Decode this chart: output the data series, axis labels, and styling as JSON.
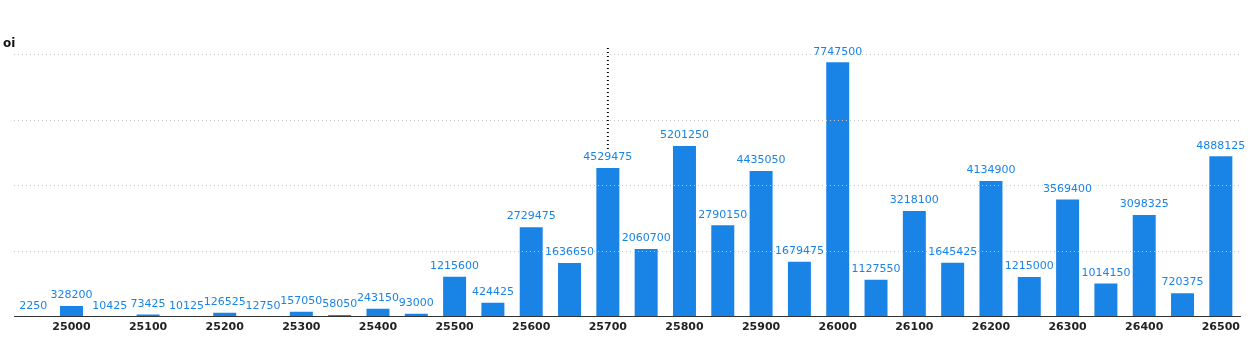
{
  "chart_data": {
    "type": "bar",
    "ylabel": "oi",
    "categories": [
      null,
      "25000",
      null,
      "25100",
      null,
      "25200",
      null,
      "25300",
      null,
      "25400",
      null,
      "25500",
      null,
      "25600",
      null,
      "25700",
      null,
      "25800",
      null,
      "25900",
      null,
      "26000",
      null,
      "26100",
      null,
      "26200",
      null,
      "26300",
      null,
      "26400",
      null,
      "26500"
    ],
    "values": [
      2250,
      328200,
      10425,
      73425,
      10125,
      126525,
      12750,
      157050,
      58050,
      243150,
      93000,
      1215600,
      424425,
      2729475,
      1636650,
      4529475,
      2060700,
      5201250,
      2790150,
      4435050,
      1679475,
      7747500,
      1127550,
      3218100,
      1645425,
      4134900,
      1215000,
      3569400,
      1014150,
      3098325,
      720375,
      4888125
    ],
    "color": "#1a84e6",
    "tick_labels": "x",
    "grid": "y",
    "legend": false,
    "data_labels": true,
    "ref_lines": [
      {
        "axis": "x",
        "value": "25700",
        "line_style": "dotted",
        "color": "#000000"
      }
    ]
  }
}
